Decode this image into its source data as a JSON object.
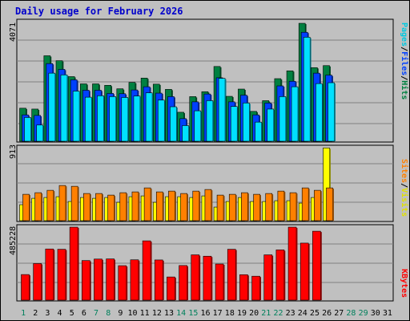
{
  "title": "Daily usage for February 2026",
  "axis_max": {
    "hits": "4071",
    "visits": "913",
    "kbytes": "485228"
  },
  "right_labels": {
    "pages": "Pages",
    "files": "Files",
    "hits": "Hits",
    "slash": "/",
    "sites": "Sites",
    "visits": "Visits",
    "kbytes": "KBytes"
  },
  "colors": {
    "hits": "#008040",
    "files": "#0040ff",
    "pages": "#00e0ff",
    "visits": "#ffff00",
    "sites": "#ff8000",
    "kbytes": "#ff0000",
    "weekday_label": "#000000",
    "weekend_label": "#00805c"
  },
  "chart_data": [
    {
      "type": "bar",
      "title": "Daily usage for February 2026",
      "categories": [
        "1",
        "2",
        "3",
        "4",
        "5",
        "6",
        "7",
        "8",
        "9",
        "10",
        "11",
        "12",
        "13",
        "14",
        "15",
        "16",
        "17",
        "18",
        "19",
        "20",
        "21",
        "22",
        "23",
        "24",
        "25",
        "26",
        "27",
        "28",
        "29",
        "30",
        "31"
      ],
      "weekend_days": [
        "1",
        "7",
        "8",
        "14",
        "15",
        "21",
        "22",
        "28",
        "29"
      ],
      "ylim": [
        0,
        4071
      ],
      "series": [
        {
          "name": "Hits",
          "values": [
            1140,
            1110,
            2950,
            2780,
            2230,
            1980,
            1980,
            1930,
            1810,
            2030,
            2180,
            1970,
            1790,
            1000,
            1540,
            1710,
            2580,
            1550,
            1800,
            1030,
            1400,
            2160,
            2430,
            4070,
            2540,
            2610,
            0,
            0,
            0,
            0,
            0
          ]
        },
        {
          "name": "Files",
          "values": [
            910,
            890,
            2680,
            2480,
            2120,
            1760,
            1760,
            1650,
            1640,
            1770,
            1880,
            1660,
            1540,
            780,
            1360,
            1630,
            2190,
            1360,
            1590,
            910,
            1320,
            1910,
            2070,
            3760,
            2350,
            2280,
            0,
            0,
            0,
            0,
            0
          ]
        },
        {
          "name": "Pages",
          "values": [
            820,
            560,
            2350,
            2290,
            1730,
            1520,
            1570,
            1540,
            1510,
            1560,
            1670,
            1420,
            1190,
            540,
            1050,
            1400,
            2170,
            1200,
            1320,
            660,
            1110,
            1540,
            1880,
            3590,
            1990,
            2020,
            0,
            0,
            0,
            0,
            0
          ]
        }
      ]
    },
    {
      "type": "bar",
      "categories": [
        "1",
        "2",
        "3",
        "4",
        "5",
        "6",
        "7",
        "8",
        "9",
        "10",
        "11",
        "12",
        "13",
        "14",
        "15",
        "16",
        "17",
        "18",
        "19",
        "20",
        "21",
        "22",
        "23",
        "24",
        "25",
        "26",
        "27",
        "28",
        "29",
        "30",
        "31"
      ],
      "ylim": [
        0,
        913
      ],
      "series": [
        {
          "name": "Sites",
          "values": [
            330,
            350,
            380,
            440,
            430,
            340,
            340,
            320,
            350,
            360,
            410,
            360,
            370,
            340,
            370,
            390,
            320,
            330,
            350,
            330,
            340,
            370,
            350,
            410,
            380,
            410,
            0,
            0,
            0,
            0,
            0
          ]
        },
        {
          "name": "Visits",
          "values": [
            200,
            280,
            290,
            300,
            240,
            290,
            280,
            290,
            230,
            300,
            310,
            230,
            300,
            300,
            290,
            310,
            170,
            240,
            290,
            240,
            240,
            250,
            250,
            220,
            290,
            910,
            0,
            0,
            0,
            0,
            0
          ]
        }
      ]
    },
    {
      "type": "bar",
      "categories": [
        "1",
        "2",
        "3",
        "4",
        "5",
        "6",
        "7",
        "8",
        "9",
        "10",
        "11",
        "12",
        "13",
        "14",
        "15",
        "16",
        "17",
        "18",
        "19",
        "20",
        "21",
        "22",
        "23",
        "24",
        "25",
        "26",
        "27",
        "28",
        "29",
        "30",
        "31"
      ],
      "ylim": [
        0,
        485228
      ],
      "series": [
        {
          "name": "KBytes",
          "values": [
            170000,
            243000,
            340000,
            338000,
            485000,
            263000,
            273000,
            274000,
            229000,
            268000,
            394000,
            267000,
            154000,
            230000,
            301000,
            292000,
            240000,
            338000,
            169000,
            159000,
            301000,
            334000,
            485000,
            379000,
            458000,
            0,
            0,
            0,
            0,
            0,
            0
          ]
        }
      ]
    }
  ]
}
